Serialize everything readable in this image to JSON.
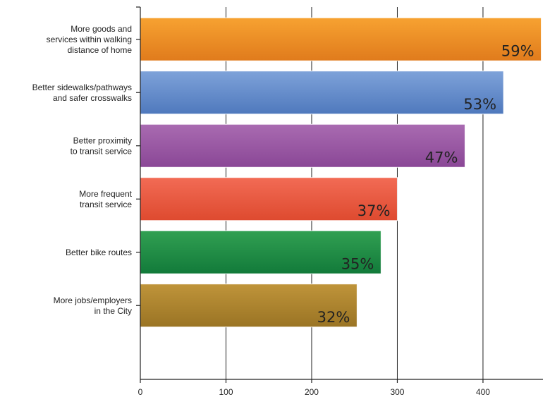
{
  "chart_data": {
    "type": "bar",
    "orientation": "horizontal",
    "categories": [
      [
        "More goods and",
        "services within walking",
        "distance of home"
      ],
      [
        "Better sidewalks/pathways",
        "and safer crosswalks"
      ],
      [
        "Better proximity",
        "to transit service"
      ],
      [
        "More frequent",
        "transit service"
      ],
      [
        "Better bike routes"
      ],
      [
        "More jobs/employers",
        "in the City"
      ]
    ],
    "values": [
      468,
      424,
      379,
      300,
      281,
      253
    ],
    "data_labels": [
      "59%",
      "53%",
      "47%",
      "37%",
      "35%",
      "32%"
    ],
    "colors": [
      [
        "#f7a231",
        "#e07b1c"
      ],
      [
        "#7ea2d9",
        "#4f79bd"
      ],
      [
        "#a96bb1",
        "#8a4796"
      ],
      [
        "#f26b55",
        "#de4a2f"
      ],
      [
        "#31a052",
        "#127a3a"
      ],
      [
        "#bf943a",
        "#9a7424"
      ]
    ],
    "xlim": [
      0,
      470
    ],
    "xticks": [
      0,
      100,
      200,
      300,
      400
    ],
    "grid": true,
    "title": "",
    "xlabel": "",
    "ylabel": ""
  }
}
